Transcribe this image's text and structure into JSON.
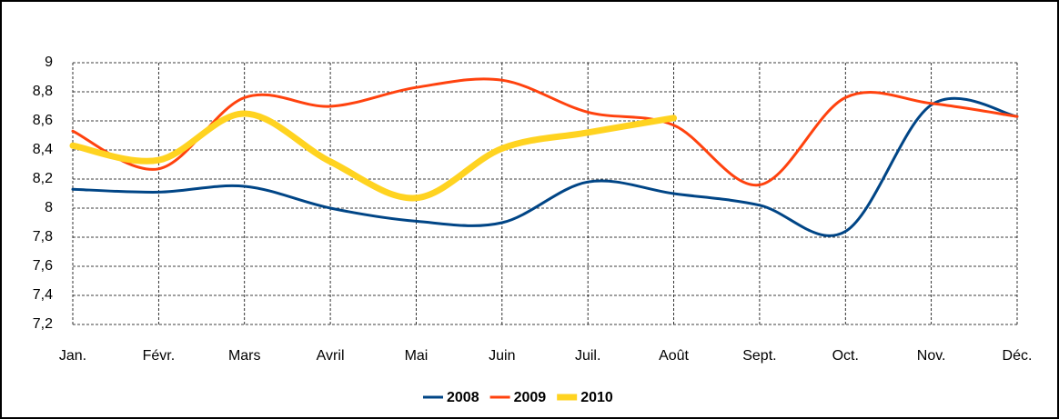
{
  "chart_data": {
    "type": "line",
    "categories": [
      "Jan.",
      "Févr.",
      "Mars",
      "Avril",
      "Mai",
      "Juin",
      "Juil.",
      "Août",
      "Sept.",
      "Oct.",
      "Nov.",
      "Déc."
    ],
    "series": [
      {
        "name": "2008",
        "color": "#004586",
        "values": [
          8.13,
          8.11,
          8.15,
          8.0,
          7.91,
          7.9,
          8.18,
          8.1,
          8.02,
          7.84,
          8.71,
          8.63
        ]
      },
      {
        "name": "2009",
        "color": "#ff420e",
        "values": [
          8.53,
          8.27,
          8.76,
          8.7,
          8.83,
          8.88,
          8.66,
          8.57,
          8.16,
          8.76,
          8.72,
          8.63
        ]
      },
      {
        "name": "2010",
        "color": "#ffd320",
        "values": [
          8.43,
          8.33,
          8.65,
          8.32,
          8.07,
          8.41,
          8.52,
          8.62,
          null,
          null,
          null,
          null
        ]
      }
    ],
    "ylim": [
      7.2,
      9
    ],
    "yticks": [
      {
        "value": 7.2,
        "label": "7,2"
      },
      {
        "value": 7.4,
        "label": "7,4"
      },
      {
        "value": 7.6,
        "label": "7,6"
      },
      {
        "value": 7.8,
        "label": "7,8"
      },
      8,
      {
        "value": 8.2,
        "label": "8,2"
      },
      {
        "value": 8.4,
        "label": "8,4"
      },
      {
        "value": 8.6,
        "label": "8,6"
      },
      {
        "value": 8.8,
        "label": "8,8"
      },
      9
    ],
    "grid": true,
    "legend": "bottom"
  }
}
